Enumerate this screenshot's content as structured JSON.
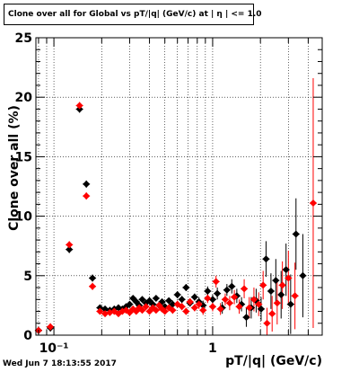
{
  "timestamp": "Wed Jun  7 18:13:55 2017",
  "chart_data": {
    "type": "scatter",
    "title": "Clone  over all for Global vs pT/|q| (GeV/c) at | η | <= 1.0",
    "xlabel": "pT/|q| (GeV/c)",
    "ylabel": "Clone  over all (%)",
    "xscale": "log",
    "xlim": [
      0.077,
      4.9
    ],
    "ylim": [
      0,
      25
    ],
    "yticks": [
      0,
      5,
      10,
      15,
      20,
      25
    ],
    "xticks": [
      {
        "value": 0.1,
        "label": "10⁻¹"
      },
      {
        "value": 1,
        "label": "1"
      }
    ],
    "grid": true,
    "series": [
      {
        "color": "#000000",
        "points": [
          [
            0.08,
            0.4,
            0.3
          ],
          [
            0.095,
            0.6,
            0.3
          ],
          [
            0.125,
            7.2,
            0.3
          ],
          [
            0.145,
            19.0,
            0.3
          ],
          [
            0.16,
            12.7,
            0.3
          ],
          [
            0.175,
            4.8,
            0.3
          ],
          [
            0.195,
            2.3,
            0.2
          ],
          [
            0.21,
            2.2,
            0.2
          ],
          [
            0.225,
            2.1,
            0.2
          ],
          [
            0.24,
            2.2,
            0.2
          ],
          [
            0.255,
            2.3,
            0.2
          ],
          [
            0.27,
            2.2,
            0.2
          ],
          [
            0.285,
            2.4,
            0.2
          ],
          [
            0.3,
            2.6,
            0.2
          ],
          [
            0.315,
            3.1,
            0.2
          ],
          [
            0.33,
            2.8,
            0.2
          ],
          [
            0.345,
            2.5,
            0.2
          ],
          [
            0.36,
            3.0,
            0.2
          ],
          [
            0.38,
            2.7,
            0.2
          ],
          [
            0.4,
            2.9,
            0.2
          ],
          [
            0.42,
            2.6,
            0.2
          ],
          [
            0.44,
            3.1,
            0.2
          ],
          [
            0.46,
            2.5,
            0.2
          ],
          [
            0.48,
            2.8,
            0.2
          ],
          [
            0.5,
            2.4,
            0.2
          ],
          [
            0.53,
            2.9,
            0.2
          ],
          [
            0.56,
            2.6,
            0.3
          ],
          [
            0.6,
            3.4,
            0.3
          ],
          [
            0.64,
            3.0,
            0.3
          ],
          [
            0.68,
            4.0,
            0.3
          ],
          [
            0.72,
            2.7,
            0.3
          ],
          [
            0.77,
            3.2,
            0.3
          ],
          [
            0.82,
            2.8,
            0.4
          ],
          [
            0.87,
            2.5,
            0.4
          ],
          [
            0.93,
            3.7,
            0.4
          ],
          [
            1.0,
            3.0,
            0.4
          ],
          [
            1.07,
            3.5,
            0.5
          ],
          [
            1.15,
            2.3,
            0.5
          ],
          [
            1.23,
            3.8,
            0.5
          ],
          [
            1.32,
            4.1,
            0.6
          ],
          [
            1.42,
            3.3,
            0.6
          ],
          [
            1.52,
            2.6,
            0.6
          ],
          [
            1.63,
            1.5,
            0.8
          ],
          [
            1.75,
            2.3,
            0.9
          ],
          [
            1.88,
            2.9,
            1.0
          ],
          [
            2.02,
            2.2,
            1.0
          ],
          [
            2.17,
            6.4,
            1.5
          ],
          [
            2.33,
            3.7,
            1.5
          ],
          [
            2.5,
            4.6,
            1.8
          ],
          [
            2.7,
            3.4,
            2.0
          ],
          [
            2.9,
            5.5,
            2.2
          ],
          [
            3.1,
            2.6,
            2.5
          ],
          [
            3.35,
            8.5,
            3.0
          ],
          [
            3.7,
            5.0,
            3.5
          ]
        ]
      },
      {
        "color": "#ff0000",
        "points": [
          [
            0.08,
            0.4,
            0.3
          ],
          [
            0.095,
            0.7,
            0.3
          ],
          [
            0.125,
            7.6,
            0.3
          ],
          [
            0.145,
            19.3,
            0.3
          ],
          [
            0.16,
            11.7,
            0.3
          ],
          [
            0.175,
            4.1,
            0.3
          ],
          [
            0.195,
            2.0,
            0.2
          ],
          [
            0.21,
            1.8,
            0.2
          ],
          [
            0.225,
            1.9,
            0.2
          ],
          [
            0.24,
            2.0,
            0.2
          ],
          [
            0.255,
            1.8,
            0.2
          ],
          [
            0.27,
            2.0,
            0.2
          ],
          [
            0.285,
            2.1,
            0.2
          ],
          [
            0.3,
            1.9,
            0.2
          ],
          [
            0.315,
            2.2,
            0.2
          ],
          [
            0.33,
            2.0,
            0.2
          ],
          [
            0.345,
            2.3,
            0.2
          ],
          [
            0.36,
            2.1,
            0.2
          ],
          [
            0.38,
            2.4,
            0.2
          ],
          [
            0.4,
            2.0,
            0.2
          ],
          [
            0.42,
            2.3,
            0.2
          ],
          [
            0.44,
            2.1,
            0.2
          ],
          [
            0.46,
            2.5,
            0.2
          ],
          [
            0.48,
            2.2,
            0.2
          ],
          [
            0.5,
            2.0,
            0.2
          ],
          [
            0.53,
            2.3,
            0.2
          ],
          [
            0.56,
            2.1,
            0.3
          ],
          [
            0.6,
            2.6,
            0.3
          ],
          [
            0.64,
            2.4,
            0.3
          ],
          [
            0.68,
            2.0,
            0.3
          ],
          [
            0.72,
            2.8,
            0.3
          ],
          [
            0.77,
            2.3,
            0.3
          ],
          [
            0.82,
            2.6,
            0.4
          ],
          [
            0.87,
            2.1,
            0.4
          ],
          [
            0.93,
            3.1,
            0.4
          ],
          [
            1.0,
            2.4,
            0.4
          ],
          [
            1.05,
            4.5,
            0.5
          ],
          [
            1.12,
            2.2,
            0.5
          ],
          [
            1.2,
            3.0,
            0.5
          ],
          [
            1.28,
            2.7,
            0.6
          ],
          [
            1.37,
            3.2,
            0.6
          ],
          [
            1.47,
            2.4,
            0.6
          ],
          [
            1.58,
            3.9,
            0.8
          ],
          [
            1.7,
            2.3,
            0.9
          ],
          [
            1.82,
            3.0,
            1.0
          ],
          [
            1.95,
            2.6,
            1.0
          ],
          [
            2.08,
            4.2,
            1.2
          ],
          [
            2.2,
            1.0,
            1.3
          ],
          [
            2.37,
            1.8,
            1.5
          ],
          [
            2.55,
            2.7,
            1.8
          ],
          [
            2.75,
            4.2,
            2.0
          ],
          [
            3.0,
            4.8,
            2.3
          ],
          [
            3.3,
            3.3,
            2.8
          ],
          [
            4.3,
            11.1,
            10.5
          ]
        ]
      }
    ]
  }
}
